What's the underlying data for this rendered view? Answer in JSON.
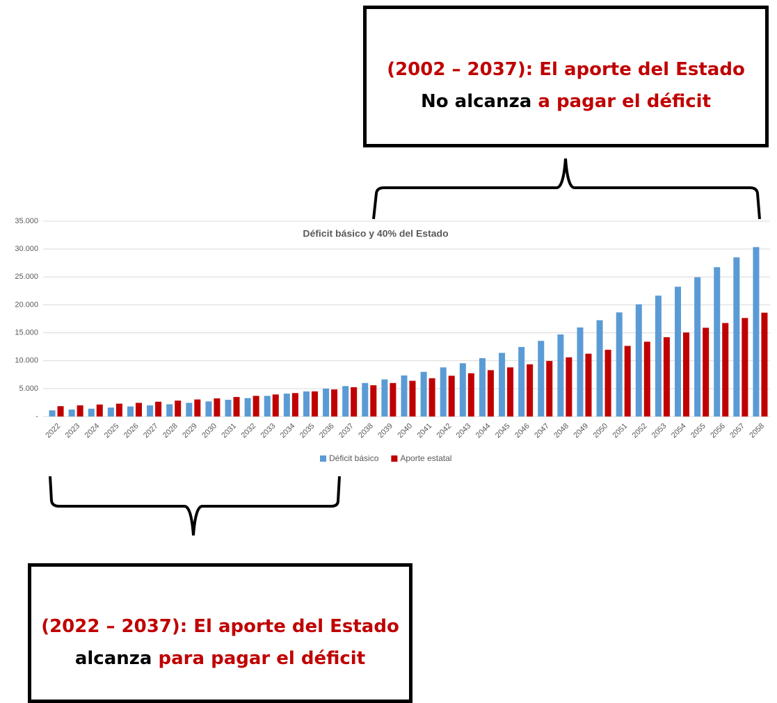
{
  "chart_data": {
    "type": "bar",
    "title": "Déficit básico y 40% del Estado",
    "categories": [
      "2022",
      "2023",
      "2024",
      "2025",
      "2026",
      "2027",
      "2028",
      "2029",
      "2030",
      "2031",
      "2032",
      "2033",
      "2034",
      "2035",
      "2036",
      "2037",
      "2038",
      "2039",
      "2040",
      "2041",
      "2042",
      "2043",
      "2044",
      "2045",
      "2046",
      "2047",
      "2048",
      "2049",
      "2050",
      "2051",
      "2052",
      "2053",
      "2054",
      "2055",
      "2056",
      "2057",
      "2058"
    ],
    "series": [
      {
        "name": "Déficit básico",
        "color": "#5b9bd5",
        "values": [
          1100,
          1250,
          1400,
          1600,
          1800,
          2000,
          2200,
          2450,
          2700,
          3000,
          3300,
          3700,
          4100,
          4500,
          5000,
          5450,
          6000,
          6650,
          7350,
          8000,
          8800,
          9550,
          10450,
          11400,
          12450,
          13550,
          14700,
          15950,
          17250,
          18650,
          20100,
          21650,
          23250,
          24950,
          26750,
          28500,
          30350
        ]
      },
      {
        "name": "Aporte estatal",
        "color": "#c00000",
        "values": [
          1850,
          2000,
          2150,
          2300,
          2450,
          2650,
          2850,
          3050,
          3250,
          3500,
          3700,
          3950,
          4200,
          4500,
          4850,
          5250,
          5600,
          6000,
          6400,
          6850,
          7300,
          7750,
          8300,
          8800,
          9350,
          9950,
          10600,
          11250,
          11950,
          12650,
          13400,
          14200,
          15050,
          15900,
          16750,
          17650,
          18600
        ]
      }
    ],
    "ylim": [
      0,
      35000
    ],
    "yticks": [
      {
        "value": 0,
        "label": "-"
      },
      {
        "value": 5000,
        "label": "5.000"
      },
      {
        "value": 10000,
        "label": "10.000"
      },
      {
        "value": 15000,
        "label": "15.000"
      },
      {
        "value": 20000,
        "label": "20.000"
      },
      {
        "value": 25000,
        "label": "25.000"
      },
      {
        "value": 30000,
        "label": "30.000"
      },
      {
        "value": 35000,
        "label": "35.000"
      }
    ],
    "grid": true,
    "legend": "bottom"
  },
  "annotations": [
    {
      "line1": "(2002 – 2037): El aporte del Estado",
      "line2": [
        "No alcanza",
        "a pagar el déficit"
      ]
    },
    {
      "line1": "(2022 – 2037): El aporte del Estado",
      "line2": [
        "alcanza",
        "para pagar el déficit"
      ]
    }
  ]
}
